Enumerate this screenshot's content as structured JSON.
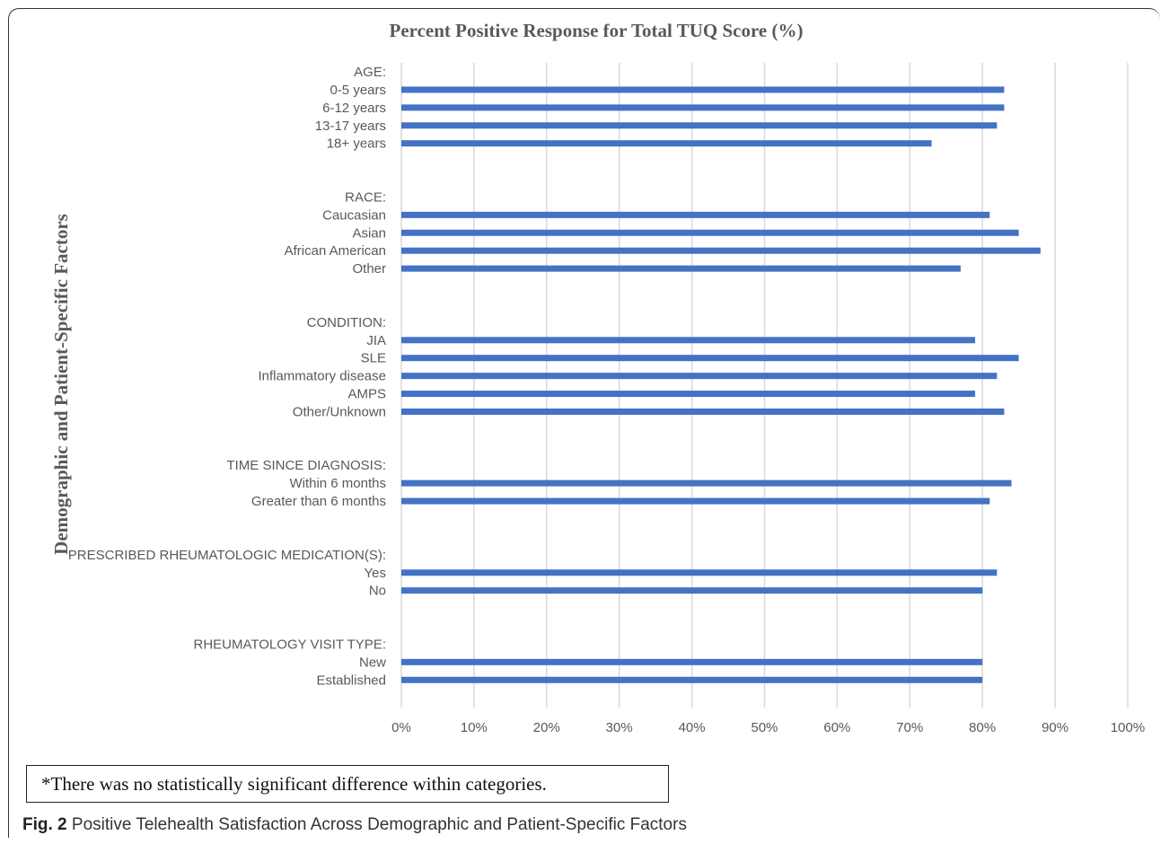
{
  "chart_data": {
    "type": "bar",
    "orientation": "horizontal",
    "title": "Percent Positive Response for Total TUQ Score (%)",
    "ylabel": "Demographic and Patient-Specific Factors",
    "xlabel": "",
    "xlim": [
      0,
      100
    ],
    "x_ticks": [
      "0%",
      "10%",
      "20%",
      "30%",
      "40%",
      "50%",
      "60%",
      "70%",
      "80%",
      "90%",
      "100%"
    ],
    "grid": "vertical",
    "bar_color": "#4472C4",
    "rows": [
      {
        "label": "AGE:",
        "header": true
      },
      {
        "label": "0-5 years",
        "value": 83
      },
      {
        "label": "6-12 years",
        "value": 83
      },
      {
        "label": "13-17 years",
        "value": 82
      },
      {
        "label": "18+ years",
        "value": 73
      },
      {
        "label": "",
        "spacer": true
      },
      {
        "label": "",
        "spacer": true
      },
      {
        "label": "RACE:",
        "header": true
      },
      {
        "label": "Caucasian",
        "value": 81
      },
      {
        "label": "Asian",
        "value": 85
      },
      {
        "label": "African American",
        "value": 88
      },
      {
        "label": "Other",
        "value": 77
      },
      {
        "label": "",
        "spacer": true
      },
      {
        "label": "",
        "spacer": true
      },
      {
        "label": "CONDITION:",
        "header": true
      },
      {
        "label": "JIA",
        "value": 79
      },
      {
        "label": "SLE",
        "value": 85
      },
      {
        "label": "Inflammatory disease",
        "value": 82
      },
      {
        "label": "AMPS",
        "value": 79
      },
      {
        "label": "Other/Unknown",
        "value": 83
      },
      {
        "label": "",
        "spacer": true
      },
      {
        "label": "",
        "spacer": true
      },
      {
        "label": "TIME SINCE DIAGNOSIS:",
        "header": true
      },
      {
        "label": "Within 6 months",
        "value": 84
      },
      {
        "label": "Greater than 6 months",
        "value": 81
      },
      {
        "label": "",
        "spacer": true
      },
      {
        "label": "",
        "spacer": true
      },
      {
        "label": "PRESCRIBED RHEUMATOLOGIC MEDICATION(S):",
        "header": true
      },
      {
        "label": "Yes",
        "value": 82
      },
      {
        "label": "No",
        "value": 80
      },
      {
        "label": "",
        "spacer": true
      },
      {
        "label": "",
        "spacer": true
      },
      {
        "label": "RHEUMATOLOGY VISIT TYPE:",
        "header": true
      },
      {
        "label": "New",
        "value": 80
      },
      {
        "label": "Established",
        "value": 80
      }
    ]
  },
  "footnote": "*There was no statistically significant difference within categories.",
  "caption": {
    "label": "Fig. 2",
    "text": "Positive Telehealth Satisfaction Across Demographic and Patient-Specific Factors"
  }
}
